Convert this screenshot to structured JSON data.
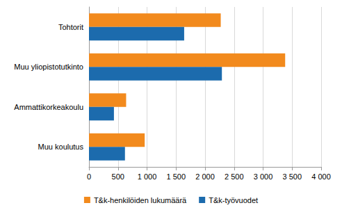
{
  "chart_data": {
    "type": "bar",
    "orientation": "horizontal",
    "categories": [
      "Tohtorit",
      "Muu yliopistotutkinto",
      "Ammattikorkeakoulu",
      "Muu koulutus"
    ],
    "series": [
      {
        "name": "T&k-henkilöiden lukumäärä",
        "color": "#f28a1d",
        "values": [
          2270,
          3380,
          640,
          960
        ]
      },
      {
        "name": "T&k-työvuodet",
        "color": "#1c6bad",
        "values": [
          1640,
          2290,
          430,
          620
        ]
      }
    ],
    "xlim": [
      0,
      4000
    ],
    "xticks": [
      0,
      500,
      {
        "value": 1000,
        "label": "1 000"
      },
      {
        "value": 1500,
        "label": "1 500"
      },
      {
        "value": 2000,
        "label": "2 000"
      },
      {
        "value": 2500,
        "label": "2 500"
      },
      {
        "value": 3000,
        "label": "3 000"
      },
      {
        "value": 3500,
        "label": "3 500"
      },
      {
        "value": 4000,
        "label": "4 000"
      }
    ],
    "grid": true,
    "legend": "bottom"
  }
}
